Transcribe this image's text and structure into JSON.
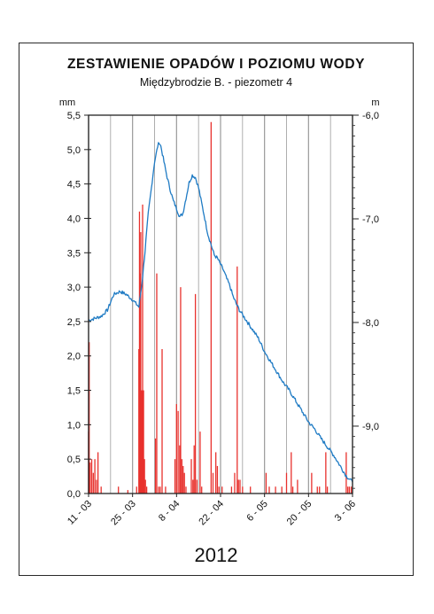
{
  "title": "ZESTAWIENIE OPADÓW I POZIOMU WODY",
  "subtitle": "Międzybrodzie B. - piezometr 4",
  "year_label": "2012",
  "chart_data": {
    "type": "bar+line",
    "grid": true,
    "x_ticks": [
      "11 - 03",
      "25 - 03",
      "8 - 04",
      "22 - 04",
      "6 - 05",
      "20 - 05",
      "3 - 06"
    ],
    "x_range_days": [
      0,
      84
    ],
    "left_axis": {
      "unit": "mm",
      "ylim": [
        0,
        5.5
      ],
      "ticks": [
        "0,0",
        "0,5",
        "1,0",
        "1,5",
        "2,0",
        "2,5",
        "3,0",
        "3,5",
        "4,0",
        "4,5",
        "5,0",
        "5,5"
      ],
      "tick_values": [
        0,
        0.5,
        1.0,
        1.5,
        2.0,
        2.5,
        3.0,
        3.5,
        4.0,
        4.5,
        5.0,
        5.5
      ]
    },
    "right_axis": {
      "unit": "m",
      "ylim": [
        -9.65,
        -6.0
      ],
      "ticks": [
        "-6,0",
        "-7,0",
        "-8,0",
        "-9,0"
      ],
      "tick_values": [
        -6.0,
        -7.0,
        -8.0,
        -9.0
      ]
    },
    "precipitation": {
      "color": "#e8312d",
      "axis": "left",
      "points": [
        [
          0.0,
          0.9
        ],
        [
          0.2,
          2.2
        ],
        [
          0.5,
          0.45
        ],
        [
          1.0,
          0.5
        ],
        [
          1.5,
          0.3
        ],
        [
          2.0,
          0.5
        ],
        [
          2.5,
          0.2
        ],
        [
          3.0,
          0.6
        ],
        [
          4.0,
          0.1
        ],
        [
          9.5,
          0.1
        ],
        [
          12.5,
          0.05
        ],
        [
          15.3,
          0.1
        ],
        [
          16.0,
          2.1
        ],
        [
          16.2,
          4.1
        ],
        [
          16.4,
          3.2
        ],
        [
          16.6,
          3.8
        ],
        [
          16.9,
          1.5
        ],
        [
          17.2,
          4.2
        ],
        [
          17.5,
          1.5
        ],
        [
          17.8,
          0.5
        ],
        [
          18.1,
          0.2
        ],
        [
          18.5,
          0.1
        ],
        [
          21.3,
          0.8
        ],
        [
          21.7,
          3.2
        ],
        [
          22.3,
          0.1
        ],
        [
          22.8,
          0.1
        ],
        [
          23.4,
          2.1
        ],
        [
          24.5,
          0.1
        ],
        [
          27.5,
          0.5
        ],
        [
          28.0,
          1.3
        ],
        [
          28.5,
          1.2
        ],
        [
          29.0,
          0.7
        ],
        [
          29.3,
          3.0
        ],
        [
          29.7,
          0.5
        ],
        [
          30.1,
          0.4
        ],
        [
          30.5,
          0.3
        ],
        [
          31.0,
          0.1
        ],
        [
          32.7,
          0.5
        ],
        [
          33.2,
          0.2
        ],
        [
          33.6,
          0.7
        ],
        [
          34.0,
          2.9
        ],
        [
          34.5,
          0.2
        ],
        [
          35.5,
          0.9
        ],
        [
          36.0,
          0.1
        ],
        [
          39.0,
          5.4
        ],
        [
          39.6,
          0.3
        ],
        [
          40.5,
          0.6
        ],
        [
          41.0,
          0.4
        ],
        [
          41.5,
          0.1
        ],
        [
          42.5,
          0.1
        ],
        [
          45.5,
          0.1
        ],
        [
          46.5,
          0.3
        ],
        [
          47.3,
          3.3
        ],
        [
          47.7,
          0.2
        ],
        [
          48.2,
          0.2
        ],
        [
          49.0,
          0.1
        ],
        [
          51.5,
          0.1
        ],
        [
          56.5,
          0.3
        ],
        [
          57.5,
          0.1
        ],
        [
          59.5,
          0.1
        ],
        [
          61.5,
          0.1
        ],
        [
          63.0,
          0.3
        ],
        [
          64.5,
          0.6
        ],
        [
          65.0,
          0.1
        ],
        [
          66.5,
          0.2
        ],
        [
          71.0,
          0.3
        ],
        [
          72.8,
          0.1
        ],
        [
          73.5,
          0.1
        ],
        [
          75.5,
          0.6
        ],
        [
          76.0,
          0.1
        ],
        [
          82.0,
          0.6
        ],
        [
          82.5,
          0.1
        ],
        [
          83.0,
          0.1
        ],
        [
          83.6,
          0.1
        ]
      ]
    },
    "water_level": {
      "color": "#1f7bc4",
      "axis": "right",
      "points": [
        [
          0,
          -7.98
        ],
        [
          2,
          -7.96
        ],
        [
          4,
          -7.94
        ],
        [
          6,
          -7.88
        ],
        [
          8,
          -7.73
        ],
        [
          10,
          -7.7
        ],
        [
          12,
          -7.73
        ],
        [
          14,
          -7.78
        ],
        [
          16,
          -7.85
        ],
        [
          17,
          -7.62
        ],
        [
          18,
          -7.3
        ],
        [
          19,
          -6.95
        ],
        [
          20,
          -6.7
        ],
        [
          21,
          -6.45
        ],
        [
          22,
          -6.3
        ],
        [
          22.5,
          -6.26
        ],
        [
          23,
          -6.3
        ],
        [
          24,
          -6.45
        ],
        [
          25,
          -6.6
        ],
        [
          26,
          -6.72
        ],
        [
          27,
          -6.83
        ],
        [
          28,
          -6.9
        ],
        [
          29,
          -6.98
        ],
        [
          30,
          -6.95
        ],
        [
          31,
          -6.8
        ],
        [
          32,
          -6.65
        ],
        [
          33,
          -6.58
        ],
        [
          34,
          -6.6
        ],
        [
          35,
          -6.7
        ],
        [
          36,
          -6.85
        ],
        [
          37,
          -7.0
        ],
        [
          38,
          -7.15
        ],
        [
          39,
          -7.25
        ],
        [
          40,
          -7.35
        ],
        [
          41,
          -7.38
        ],
        [
          42,
          -7.44
        ],
        [
          43,
          -7.5
        ],
        [
          44,
          -7.58
        ],
        [
          45,
          -7.65
        ],
        [
          46,
          -7.75
        ],
        [
          47,
          -7.82
        ],
        [
          48,
          -7.88
        ],
        [
          50,
          -7.97
        ],
        [
          52,
          -8.06
        ],
        [
          54,
          -8.15
        ],
        [
          56,
          -8.28
        ],
        [
          58,
          -8.38
        ],
        [
          60,
          -8.48
        ],
        [
          62,
          -8.58
        ],
        [
          64,
          -8.66
        ],
        [
          66,
          -8.76
        ],
        [
          68,
          -8.86
        ],
        [
          70,
          -8.96
        ],
        [
          72,
          -9.03
        ],
        [
          74,
          -9.12
        ],
        [
          76,
          -9.2
        ],
        [
          78,
          -9.28
        ],
        [
          80,
          -9.38
        ],
        [
          82,
          -9.48
        ],
        [
          84,
          -9.54
        ]
      ]
    }
  }
}
